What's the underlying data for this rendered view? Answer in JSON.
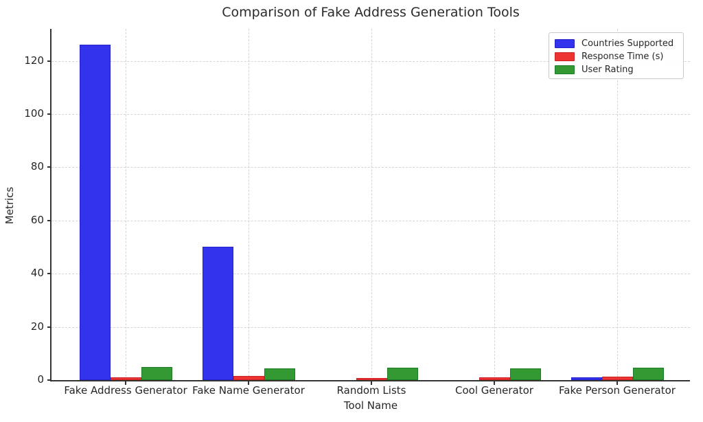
{
  "chart_data": {
    "type": "bar",
    "title": "Comparison of Fake Address Generation Tools",
    "xlabel": "Tool Name",
    "ylabel": "Metrics",
    "categories": [
      "Fake Address Generator",
      "Fake Name Generator",
      "Random Lists",
      "Cool Generator",
      "Fake Person Generator"
    ],
    "series": [
      {
        "name": "Countries Supported",
        "color": "#3333ee",
        "edge_color": "#2222cc",
        "values": [
          126,
          50,
          0,
          0,
          1
        ]
      },
      {
        "name": "Response Time (s)",
        "color": "#ee3333",
        "edge_color": "#cc2222",
        "values": [
          1.0,
          1.5,
          0.8,
          1.0,
          1.2
        ]
      },
      {
        "name": "User Rating",
        "color": "#339a33",
        "edge_color": "#1f7a24",
        "values": [
          4.8,
          4.5,
          4.6,
          4.4,
          4.6
        ]
      }
    ],
    "yticks": [
      0,
      20,
      40,
      60,
      80,
      100,
      120
    ],
    "ylim": [
      0,
      132
    ],
    "grid": true,
    "grid_style": "dashed",
    "legend_position": "upper right",
    "background_color": "#ffffff",
    "axis_color": "#333333",
    "text_color": "#262626"
  }
}
